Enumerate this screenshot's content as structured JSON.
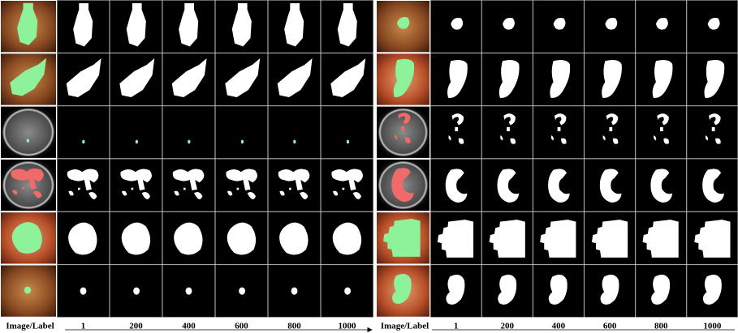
{
  "panels": [
    {
      "header": "Image/Label",
      "columns": [
        "1",
        "200",
        "400",
        "600",
        "800",
        "1000"
      ]
    },
    {
      "header": "Image/Label",
      "columns": [
        "1",
        "200",
        "400",
        "600",
        "800",
        "1000"
      ]
    }
  ]
}
